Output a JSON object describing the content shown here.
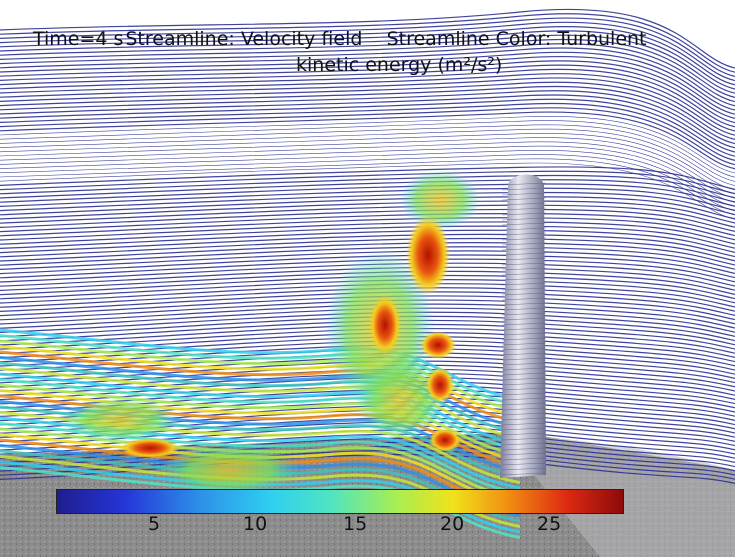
{
  "title": {
    "time": "Time=4 s",
    "streamline": "Streamline: Velocity field",
    "color_prefix": "Streamline Color: Turbulent",
    "color_line2": "kinetic energy (m²/s²)"
  },
  "colorbar": {
    "ticks": [
      "5",
      "10",
      "15",
      "20",
      "25"
    ],
    "colors": [
      "#1e1e8c",
      "#2535d8",
      "#2d8fe8",
      "#2fd0f0",
      "#4de4c4",
      "#a8ee52",
      "#f1e21a",
      "#f08c12",
      "#de2a12",
      "#8c0a0a"
    ]
  },
  "colors": {
    "streamline": "#2a2f92",
    "ground": "#8f8f8f",
    "pillar": "#c7c7d8"
  }
}
